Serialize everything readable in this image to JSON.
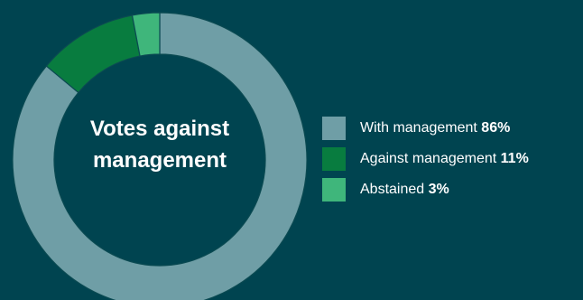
{
  "chart_data": {
    "type": "pie",
    "title": "Votes against management",
    "title_lines": [
      "Votes against",
      "management"
    ],
    "unit": "%",
    "categories": [
      "With management",
      "Against management",
      "Abstained"
    ],
    "values": [
      86,
      11,
      3
    ],
    "colors": [
      "#6f9ea6",
      "#087c3f",
      "#3fb67b"
    ],
    "legend_position": "right"
  },
  "background": "#004450",
  "slice_edge": "#0b4a52"
}
